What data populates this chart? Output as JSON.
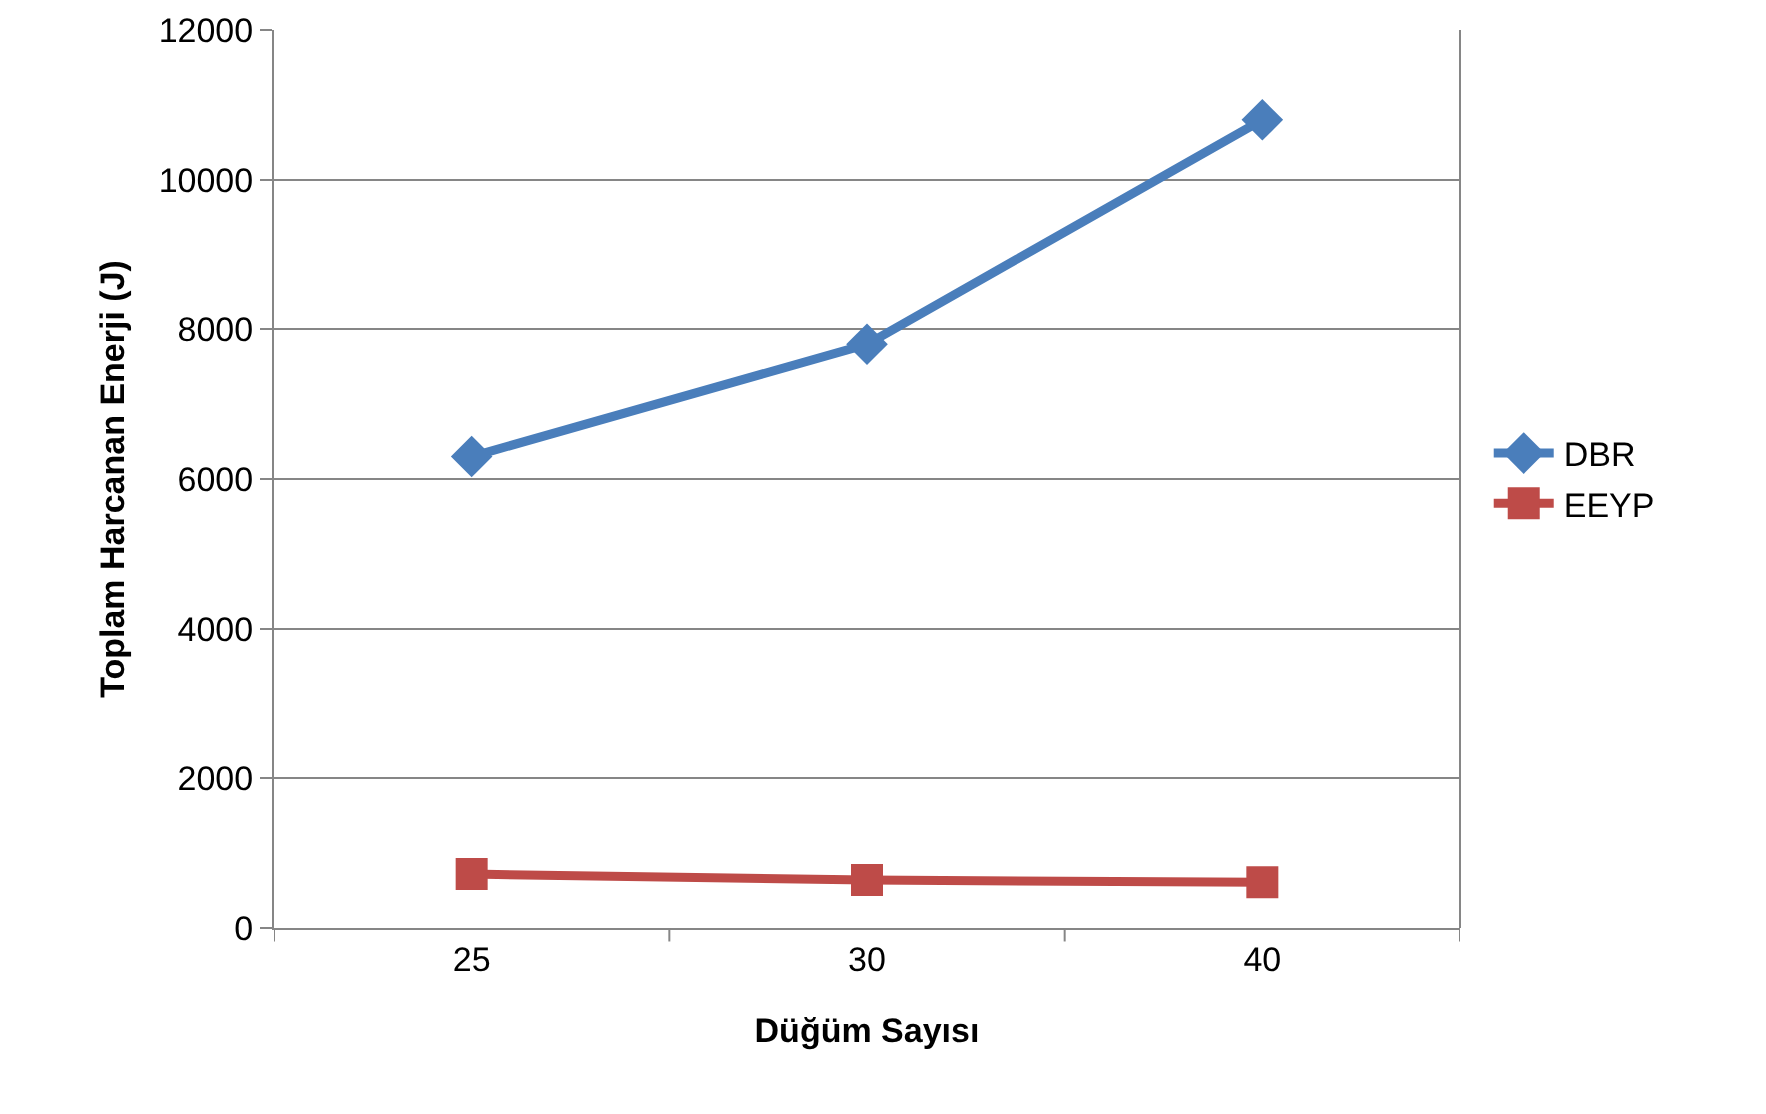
{
  "chart_data": {
    "type": "line",
    "xlabel": "Düğüm Sayısı",
    "ylabel": "Toplam Harcanan Enerji (J)",
    "categories": [
      "25",
      "30",
      "40"
    ],
    "series": [
      {
        "name": "DBR",
        "color": "#4a7ebb",
        "marker": "diamond",
        "values": [
          6300,
          7800,
          10800
        ]
      },
      {
        "name": "EEYP",
        "color": "#be4b48",
        "marker": "square",
        "values": [
          720,
          640,
          610
        ]
      }
    ],
    "ylim": [
      0,
      12000
    ],
    "yticks": [
      0,
      2000,
      4000,
      6000,
      8000,
      10000,
      12000
    ],
    "grid": "y",
    "legend": "right",
    "line_style": "solid"
  }
}
